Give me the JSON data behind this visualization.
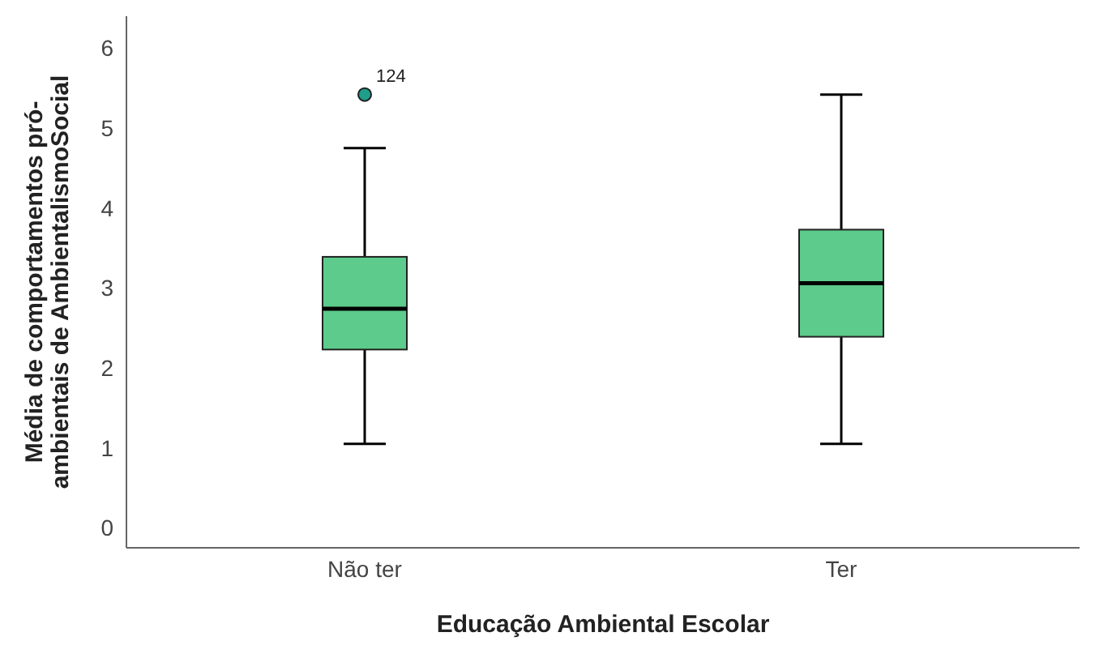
{
  "chart_data": {
    "type": "box",
    "xlabel": "Educação Ambiental Escolar",
    "ylabel": "Média de comportamentos pró-ambientais de AmbientalismoSocial",
    "categories": [
      "Não ter",
      "Ter"
    ],
    "boxes": [
      {
        "low": 1.05,
        "q1": 2.23,
        "median": 2.74,
        "q3": 3.39,
        "high": 4.75,
        "outliers": [
          5.42
        ]
      },
      {
        "low": 1.05,
        "q1": 2.39,
        "median": 3.06,
        "q3": 3.73,
        "high": 5.42
      }
    ],
    "color": "#5ccb8b",
    "ylim": [
      -0.25,
      6.4
    ],
    "yticks": [
      0,
      1,
      2,
      3,
      4,
      5,
      6
    ],
    "grid": false,
    "annotations": [
      "124"
    ]
  }
}
